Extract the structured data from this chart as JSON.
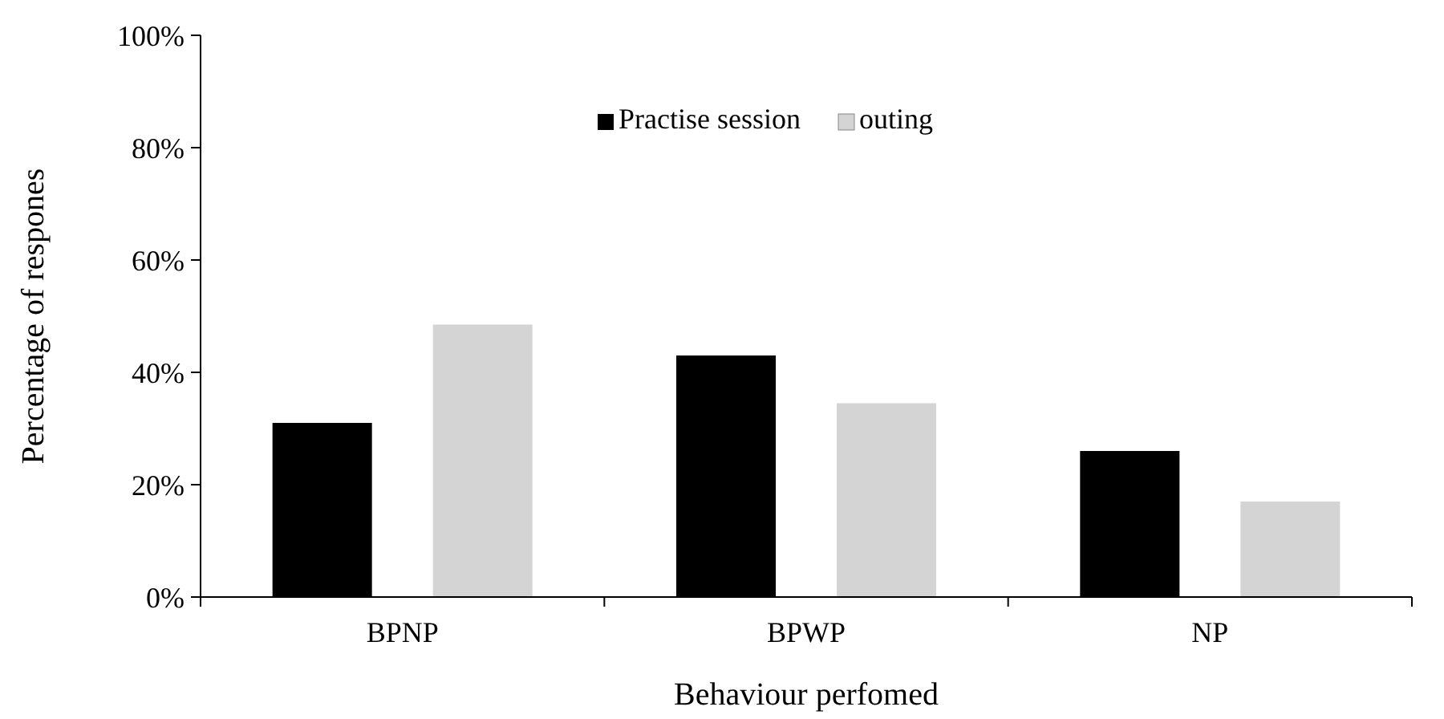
{
  "chart_data": {
    "type": "bar",
    "xlabel": "Behaviour perfomed",
    "ylabel": "Percentage of respones",
    "categories": [
      "BPNP",
      "BPWP",
      "NP"
    ],
    "series": [
      {
        "name": "Practise session",
        "color": "#000000",
        "values": [
          31,
          43,
          26
        ]
      },
      {
        "name": "outing",
        "color": "#d4d4d4",
        "values": [
          48.5,
          34.5,
          17
        ]
      }
    ],
    "ylim": [
      0,
      100
    ],
    "yticks": [
      {
        "value": 0,
        "label": "0%"
      },
      {
        "value": 20,
        "label": "20%"
      },
      {
        "value": 40,
        "label": "40%"
      },
      {
        "value": 60,
        "label": "60%"
      },
      {
        "value": 80,
        "label": "80%"
      },
      {
        "value": 100,
        "label": "100%"
      }
    ],
    "grid": false,
    "legend": "top"
  }
}
